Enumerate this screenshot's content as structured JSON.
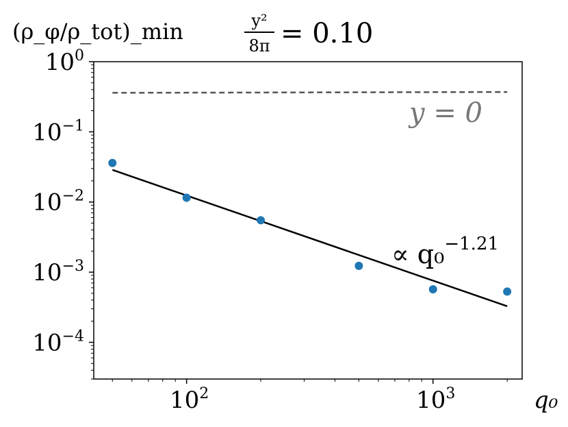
{
  "chart_data": {
    "type": "scatter",
    "title_lhs": "(ρ_φ/ρ_tot)_min",
    "title_eq_num": "y²",
    "title_eq_den": "8π",
    "title_eq_rhs": "= 0.10",
    "xlabel": "q₀",
    "xscale": "log",
    "yscale": "log",
    "xlim": [
      42,
      2300
    ],
    "ylim": [
      3e-05,
      1
    ],
    "x_ticks": [
      100,
      1000
    ],
    "y_ticks": [
      1,
      0.1,
      0.01,
      0.001,
      0.0001
    ],
    "x": [
      50,
      100,
      200,
      500,
      1000,
      2000
    ],
    "y": [
      0.036,
      0.0115,
      0.0055,
      0.00123,
      0.00057,
      0.00053
    ],
    "fit": {
      "label": "∝ q₀^−1.21",
      "exponent": -1.21,
      "x": [
        50,
        2000
      ],
      "y": [
        0.0287,
        0.000327
      ]
    },
    "baseline": {
      "label": "y = 0",
      "x": [
        50,
        2000
      ],
      "y": [
        0.36,
        0.37
      ]
    },
    "colors": {
      "points": "#1f77b4",
      "fit": "#000000",
      "baseline": "#555555",
      "baseline_label": "#777777"
    },
    "grid": false
  }
}
